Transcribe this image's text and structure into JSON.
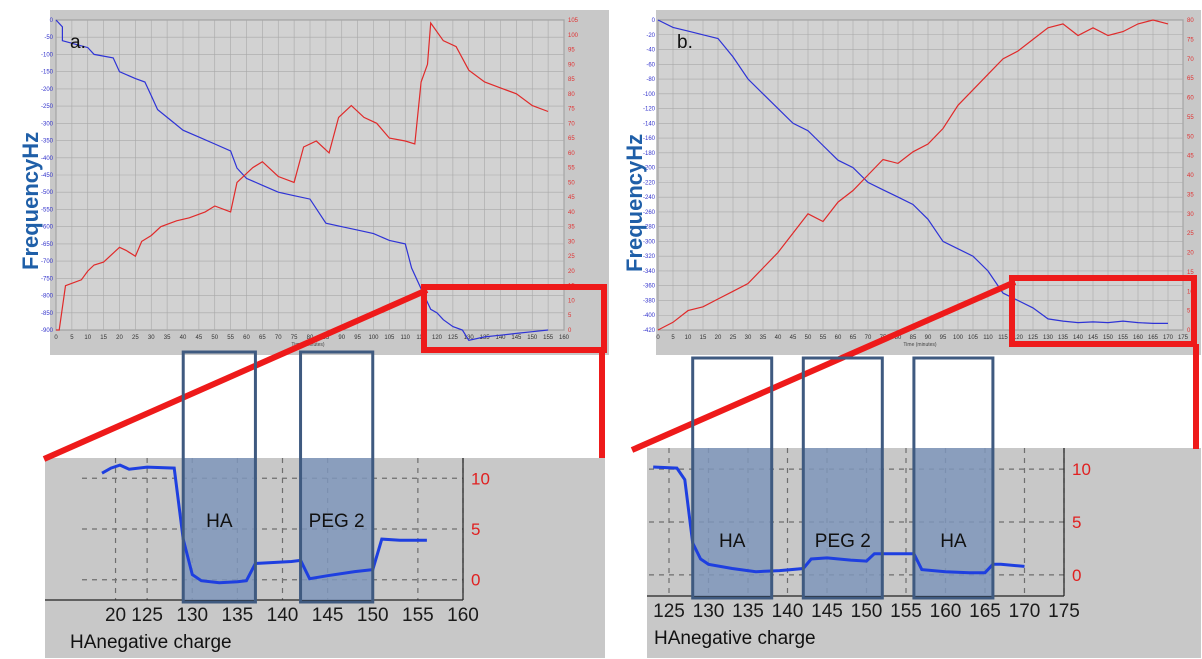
{
  "panels": [
    {
      "id": "a",
      "tag": "a.",
      "freq_label": "FrequencyHz",
      "top_chart": {
        "xticks": [
          "0",
          "5",
          "10",
          "15",
          "20",
          "25",
          "30",
          "35",
          "40",
          "45",
          "50",
          "55",
          "60",
          "65",
          "70",
          "75",
          "80",
          "85",
          "90",
          "95",
          "100",
          "105",
          "110",
          "115",
          "120",
          "125",
          "130",
          "135",
          "140",
          "145",
          "150",
          "155",
          "160"
        ],
        "xlabel_small": "Time (minutes)",
        "left_ticks": [
          "0",
          "-50",
          "-100",
          "-150",
          "-200",
          "-250",
          "-300",
          "-350",
          "-400",
          "-450",
          "-500",
          "-550",
          "-600",
          "-650",
          "-700",
          "-750",
          "-800",
          "-850",
          "-900"
        ],
        "right_ticks": [
          "105",
          "100",
          "95",
          "90",
          "85",
          "80",
          "75",
          "70",
          "65",
          "60",
          "55",
          "50",
          "45",
          "40",
          "35",
          "30",
          "25",
          "20",
          "15",
          "10",
          "5",
          "0"
        ]
      },
      "zoom_chart": {
        "xticks": [
          "20",
          "125",
          "130",
          "135",
          "140",
          "145",
          "150",
          "155",
          "160"
        ],
        "yticks_right": [
          "10",
          "5",
          "0"
        ],
        "xname": "HAnegative charge",
        "highlights": [
          "HA",
          "PEG 2"
        ]
      }
    },
    {
      "id": "b",
      "tag": "b.",
      "freq_label": "FrequencyHz",
      "top_chart": {
        "xticks": [
          "0",
          "5",
          "10",
          "15",
          "20",
          "25",
          "30",
          "35",
          "40",
          "45",
          "50",
          "55",
          "60",
          "65",
          "70",
          "75",
          "80",
          "85",
          "90",
          "95",
          "100",
          "105",
          "110",
          "115",
          "120",
          "125",
          "130",
          "135",
          "140",
          "145",
          "150",
          "155",
          "160",
          "165",
          "170",
          "175"
        ],
        "xlabel_small": "Time (minutes)",
        "left_ticks": [
          "0",
          "-20",
          "-40",
          "-60",
          "-80",
          "-100",
          "-120",
          "-140",
          "-160",
          "-180",
          "-200",
          "-220",
          "-240",
          "-260",
          "-280",
          "-300",
          "-320",
          "-340",
          "-360",
          "-380",
          "-400",
          "-420"
        ],
        "right_ticks": [
          "80",
          "75",
          "70",
          "65",
          "60",
          "55",
          "50",
          "45",
          "40",
          "35",
          "30",
          "25",
          "20",
          "15",
          "10",
          "5",
          "0"
        ]
      },
      "zoom_chart": {
        "xticks": [
          "125",
          "130",
          "135",
          "140",
          "145",
          "150",
          "155",
          "160",
          "165",
          "170",
          "175"
        ],
        "yticks_right": [
          "10",
          "5",
          "0"
        ],
        "xname": "HAnegative charge",
        "highlights": [
          "HA",
          "PEG 2",
          "HA"
        ]
      }
    }
  ],
  "colors": {
    "frequency_line": "#2e33d6",
    "dissipation_line": "#e02a2a",
    "zoom_line": "#1e3fe0",
    "callout": "#ee1a1a",
    "highlight_fill": "#7f97bb",
    "highlight_border": "#3f5a80"
  },
  "chart_data": [
    {
      "type": "line",
      "panel": "a",
      "x_unit": "minutes",
      "xlim": [
        0,
        160
      ],
      "series": [
        {
          "axis": "left",
          "color": "#2e33d6",
          "x": [
            0,
            2,
            2,
            10,
            12,
            18,
            20,
            25,
            28,
            30,
            32,
            36,
            40,
            45,
            50,
            55,
            57,
            60,
            65,
            70,
            75,
            80,
            85,
            90,
            95,
            100,
            105,
            110,
            112,
            115,
            118,
            120,
            122,
            125,
            128,
            130,
            135,
            140,
            145,
            150,
            155
          ],
          "y": [
            0,
            -20,
            -60,
            -80,
            -100,
            -110,
            -150,
            -170,
            -180,
            -220,
            -260,
            -290,
            -320,
            -340,
            -360,
            -380,
            -430,
            -460,
            -480,
            -500,
            -510,
            -520,
            -590,
            -600,
            -610,
            -620,
            -640,
            -650,
            -720,
            -780,
            -840,
            -850,
            -870,
            -890,
            -900,
            -930,
            -920,
            -915,
            -910,
            -905,
            -900
          ]
        },
        {
          "axis": "right",
          "color": "#e02a2a",
          "x": [
            0,
            1,
            3,
            8,
            10,
            12,
            15,
            20,
            22,
            25,
            27,
            30,
            33,
            38,
            42,
            47,
            50,
            55,
            57,
            62,
            65,
            70,
            75,
            78,
            82,
            86,
            89,
            93,
            97,
            101,
            105,
            110,
            113,
            115,
            117,
            118,
            122,
            126,
            130,
            135,
            140,
            145,
            150,
            155
          ],
          "y": [
            0,
            0,
            15,
            17,
            20,
            22,
            23,
            28,
            27,
            25,
            30,
            32,
            35,
            37,
            38,
            40,
            42,
            40,
            50,
            55,
            57,
            52,
            50,
            62,
            64,
            60,
            72,
            76,
            72,
            70,
            65,
            64,
            63,
            84,
            90,
            104,
            98,
            96,
            88,
            84,
            82,
            80,
            76,
            74
          ]
        }
      ]
    },
    {
      "type": "line",
      "panel": "b",
      "x_unit": "minutes",
      "xlim": [
        0,
        175
      ],
      "series": [
        {
          "axis": "left",
          "color": "#2e33d6",
          "x": [
            0,
            5,
            10,
            15,
            20,
            25,
            30,
            35,
            40,
            45,
            50,
            55,
            60,
            65,
            70,
            75,
            80,
            85,
            90,
            95,
            100,
            105,
            110,
            115,
            120,
            125,
            130,
            135,
            140,
            145,
            150,
            155,
            160,
            165,
            170
          ],
          "y": [
            0,
            -10,
            -15,
            -20,
            -25,
            -50,
            -80,
            -100,
            -120,
            -140,
            -150,
            -170,
            -190,
            -200,
            -220,
            -230,
            -240,
            -250,
            -270,
            -300,
            -310,
            -320,
            -340,
            -370,
            -380,
            -390,
            -405,
            -408,
            -410,
            -409,
            -410,
            -408,
            -410,
            -411,
            -411
          ]
        },
        {
          "axis": "right",
          "color": "#e02a2a",
          "x": [
            0,
            5,
            10,
            15,
            20,
            25,
            30,
            35,
            40,
            45,
            50,
            55,
            60,
            65,
            70,
            75,
            80,
            85,
            90,
            95,
            100,
            105,
            110,
            115,
            120,
            125,
            130,
            135,
            140,
            145,
            150,
            155,
            160,
            165,
            170
          ],
          "y": [
            0,
            2,
            5,
            6,
            8,
            10,
            12,
            16,
            20,
            25,
            30,
            28,
            33,
            36,
            40,
            44,
            43,
            46,
            48,
            52,
            58,
            62,
            66,
            70,
            72,
            75,
            78,
            79,
            76,
            78,
            76,
            77,
            79,
            80,
            79
          ]
        }
      ]
    },
    {
      "type": "line",
      "panel": "a-zoom",
      "x_unit": "minutes",
      "xlim": [
        120,
        160
      ],
      "ylim": [
        -2,
        12
      ],
      "series": [
        {
          "color": "#1e3fe0",
          "x": [
            120,
            121,
            122,
            123,
            125,
            128,
            129,
            130,
            131,
            133,
            135,
            136,
            137,
            139,
            141,
            142,
            143,
            145,
            148,
            150,
            151,
            153,
            156
          ],
          "y": [
            10.5,
            11.0,
            11.3,
            10.9,
            11.1,
            11.0,
            4.0,
            0.5,
            -0.1,
            -0.3,
            -0.2,
            -0.1,
            1.6,
            1.7,
            1.8,
            1.9,
            0.1,
            0.4,
            0.8,
            1.0,
            4.0,
            3.9,
            3.9
          ]
        }
      ],
      "highlights": [
        {
          "label": "HA",
          "x0": 129,
          "x1": 137
        },
        {
          "label": "PEG 2",
          "x0": 142,
          "x1": 150
        }
      ]
    },
    {
      "type": "line",
      "panel": "b-zoom",
      "x_unit": "minutes",
      "xlim": [
        125,
        175
      ],
      "ylim": [
        -2,
        12
      ],
      "series": [
        {
          "color": "#1e3fe0",
          "x": [
            123,
            126,
            127,
            128,
            129,
            130,
            133,
            136,
            139,
            142,
            143,
            145,
            148,
            150,
            151,
            153,
            156,
            157,
            160,
            163,
            165,
            166,
            167,
            170
          ],
          "y": [
            10.2,
            10.1,
            9.0,
            3.0,
            1.5,
            1.0,
            0.6,
            0.3,
            0.4,
            0.6,
            1.5,
            1.6,
            1.4,
            1.3,
            2.0,
            2.0,
            2.0,
            0.5,
            0.3,
            0.2,
            0.2,
            1.0,
            1.0,
            0.8
          ]
        }
      ],
      "highlights": [
        {
          "label": "HA",
          "x0": 128,
          "x1": 138
        },
        {
          "label": "PEG 2",
          "x0": 142,
          "x1": 152
        },
        {
          "label": "HA",
          "x0": 156,
          "x1": 166
        }
      ]
    }
  ]
}
